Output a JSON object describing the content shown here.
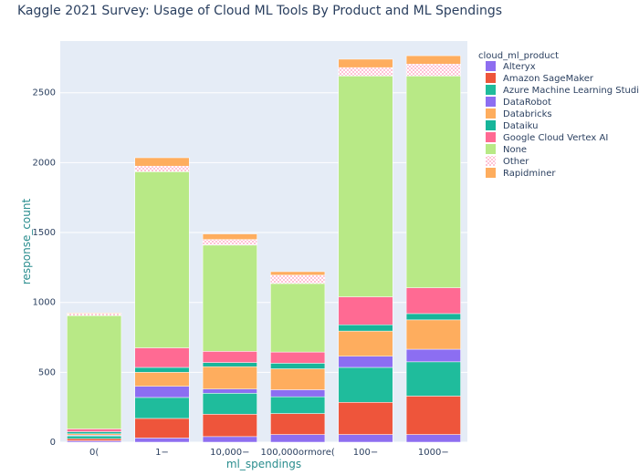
{
  "chart_data": {
    "type": "bar",
    "stacked": true,
    "title": "Kaggle 2021 Survey: Usage of Cloud ML Tools By Product and ML Spendings",
    "xlabel": "ml_spendings",
    "ylabel": "response_count",
    "categories": [
      "0(",
      "1−",
      "10,000−",
      "100,000ormore(",
      "100−",
      "1000−"
    ],
    "ylim": [
      0,
      2870
    ],
    "yticks": [
      0,
      500,
      1000,
      1500,
      2000,
      2500
    ],
    "ytick_labels": [
      "0",
      "500",
      "1000",
      "1500",
      "2000",
      "2500"
    ],
    "grid": true,
    "legend": {
      "title": "cloud_ml_product",
      "position": "right"
    },
    "series": [
      {
        "name": "Alteryx",
        "color": "#8e6ef0",
        "values": [
          10,
          30,
          40,
          55,
          55,
          55
        ]
      },
      {
        "name": "Amazon SageMaker",
        "color": "#ee553b",
        "values": [
          15,
          140,
          160,
          150,
          230,
          275
        ]
      },
      {
        "name": "Azure Machine Learning Studio",
        "color": "#1fbc9c",
        "values": [
          20,
          150,
          150,
          120,
          250,
          245
        ]
      },
      {
        "name": "DataRobot",
        "color": "#8c6ef2",
        "values": [
          5,
          80,
          30,
          50,
          80,
          90
        ]
      },
      {
        "name": "Databricks",
        "color": "#fead5e",
        "values": [
          10,
          100,
          160,
          150,
          180,
          210
        ]
      },
      {
        "name": "Dataiku",
        "color": "#17b59a",
        "values": [
          15,
          35,
          30,
          40,
          45,
          45
        ]
      },
      {
        "name": "Google Cloud Vertex AI",
        "color": "#ff6a93",
        "values": [
          20,
          140,
          80,
          80,
          200,
          185
        ]
      },
      {
        "name": "None",
        "color": "#b8e986",
        "values": [
          810,
          1260,
          760,
          490,
          1580,
          1515
        ]
      },
      {
        "name": "Other",
        "color": "#ff97b8",
        "pattern": "dots",
        "values": [
          15,
          40,
          40,
          60,
          60,
          85
        ]
      },
      {
        "name": "Rapidminer",
        "color": "#fead5e",
        "values": [
          5,
          60,
          40,
          25,
          60,
          60
        ]
      }
    ]
  }
}
